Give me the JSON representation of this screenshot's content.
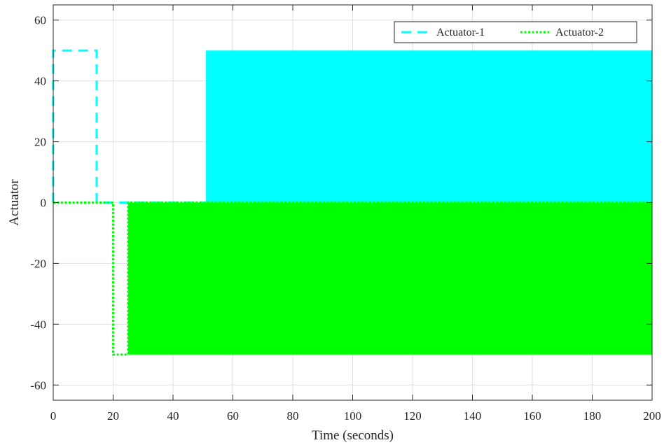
{
  "chart_data": {
    "type": "line",
    "title": "",
    "xlabel": "Time (seconds)",
    "ylabel": "Actuator",
    "xlim": [
      0,
      200
    ],
    "ylim": [
      -65,
      65
    ],
    "xticks": [
      0,
      20,
      40,
      60,
      80,
      100,
      120,
      140,
      160,
      180,
      200
    ],
    "yticks": [
      -60,
      -40,
      -20,
      0,
      20,
      40,
      60
    ],
    "grid": true,
    "legend": {
      "position": "top-right"
    },
    "series": [
      {
        "name": "Actuator-1",
        "color": "#00ffff",
        "linestyle": "dashed",
        "x": [
          0,
          0,
          14.5,
          14.5,
          23,
          23,
          51,
          51,
          200
        ],
        "y": [
          0,
          50,
          50,
          0,
          0,
          0,
          0,
          0,
          0
        ],
        "oscillation_band": {
          "x_start": 51,
          "x_end": 200,
          "y_min": 0,
          "y_max": 50
        }
      },
      {
        "name": "Actuator-2",
        "color": "#00ff00",
        "linestyle": "dotted",
        "x": [
          0,
          20,
          20,
          25,
          25,
          200
        ],
        "y": [
          0,
          0,
          -50,
          -50,
          0,
          0
        ],
        "oscillation_band": {
          "x_start": 25,
          "x_end": 200,
          "y_min": -50,
          "y_max": 0
        }
      }
    ]
  }
}
